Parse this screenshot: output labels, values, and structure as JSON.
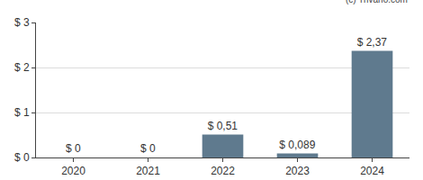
{
  "chart_data": {
    "type": "bar",
    "categories": [
      "2020",
      "2021",
      "2022",
      "2023",
      "2024"
    ],
    "values": [
      0,
      0,
      0.51,
      0.089,
      2.37
    ],
    "value_labels": [
      "$ 0",
      "$ 0",
      "$ 0,51",
      "$ 0,089",
      "$ 2,37"
    ],
    "color": "#5f7a8e",
    "ylim": [
      0,
      3
    ],
    "yticks": [
      {
        "value": 0,
        "label": "$ 0"
      },
      {
        "value": 1,
        "label": "$ 1"
      },
      {
        "value": 2,
        "label": "$ 2"
      },
      {
        "value": 3,
        "label": "$ 3"
      }
    ],
    "grid": true,
    "data_labels": true,
    "annotations": [
      "(c) Trivano.com"
    ]
  }
}
